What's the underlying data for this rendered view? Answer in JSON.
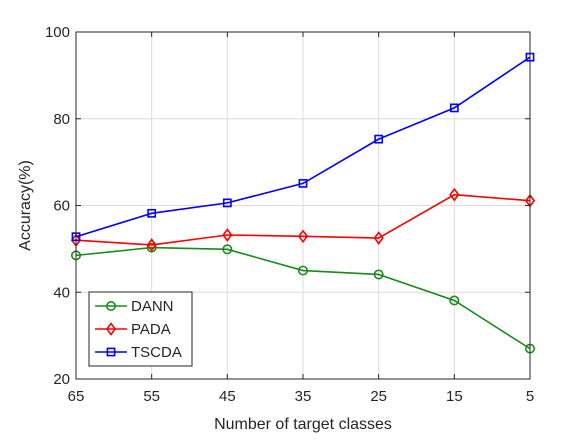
{
  "chart_data": {
    "type": "line",
    "xlabel": "Number of target classes",
    "ylabel": "Accuracy(%)",
    "categories": [
      "65",
      "55",
      "45",
      "35",
      "25",
      "15",
      "5"
    ],
    "ylim": [
      20,
      100
    ],
    "yticks": [
      "20",
      "40",
      "60",
      "80",
      "100"
    ],
    "grid": true,
    "legend_position": "bottom-left",
    "series": [
      {
        "name": "DANN",
        "color": "#1a8a1a",
        "marker": "circle",
        "values": [
          48.5,
          50.3,
          49.9,
          45.0,
          44.1,
          38.1,
          27.0
        ]
      },
      {
        "name": "PADA",
        "color": "#ff0000",
        "marker": "diamond",
        "values": [
          52.0,
          50.9,
          53.2,
          52.9,
          52.5,
          62.5,
          61.1
        ]
      },
      {
        "name": "TSCDA",
        "color": "#0000ff",
        "marker": "square",
        "values": [
          52.8,
          58.2,
          60.6,
          65.1,
          75.3,
          82.5,
          94.2
        ]
      }
    ]
  }
}
